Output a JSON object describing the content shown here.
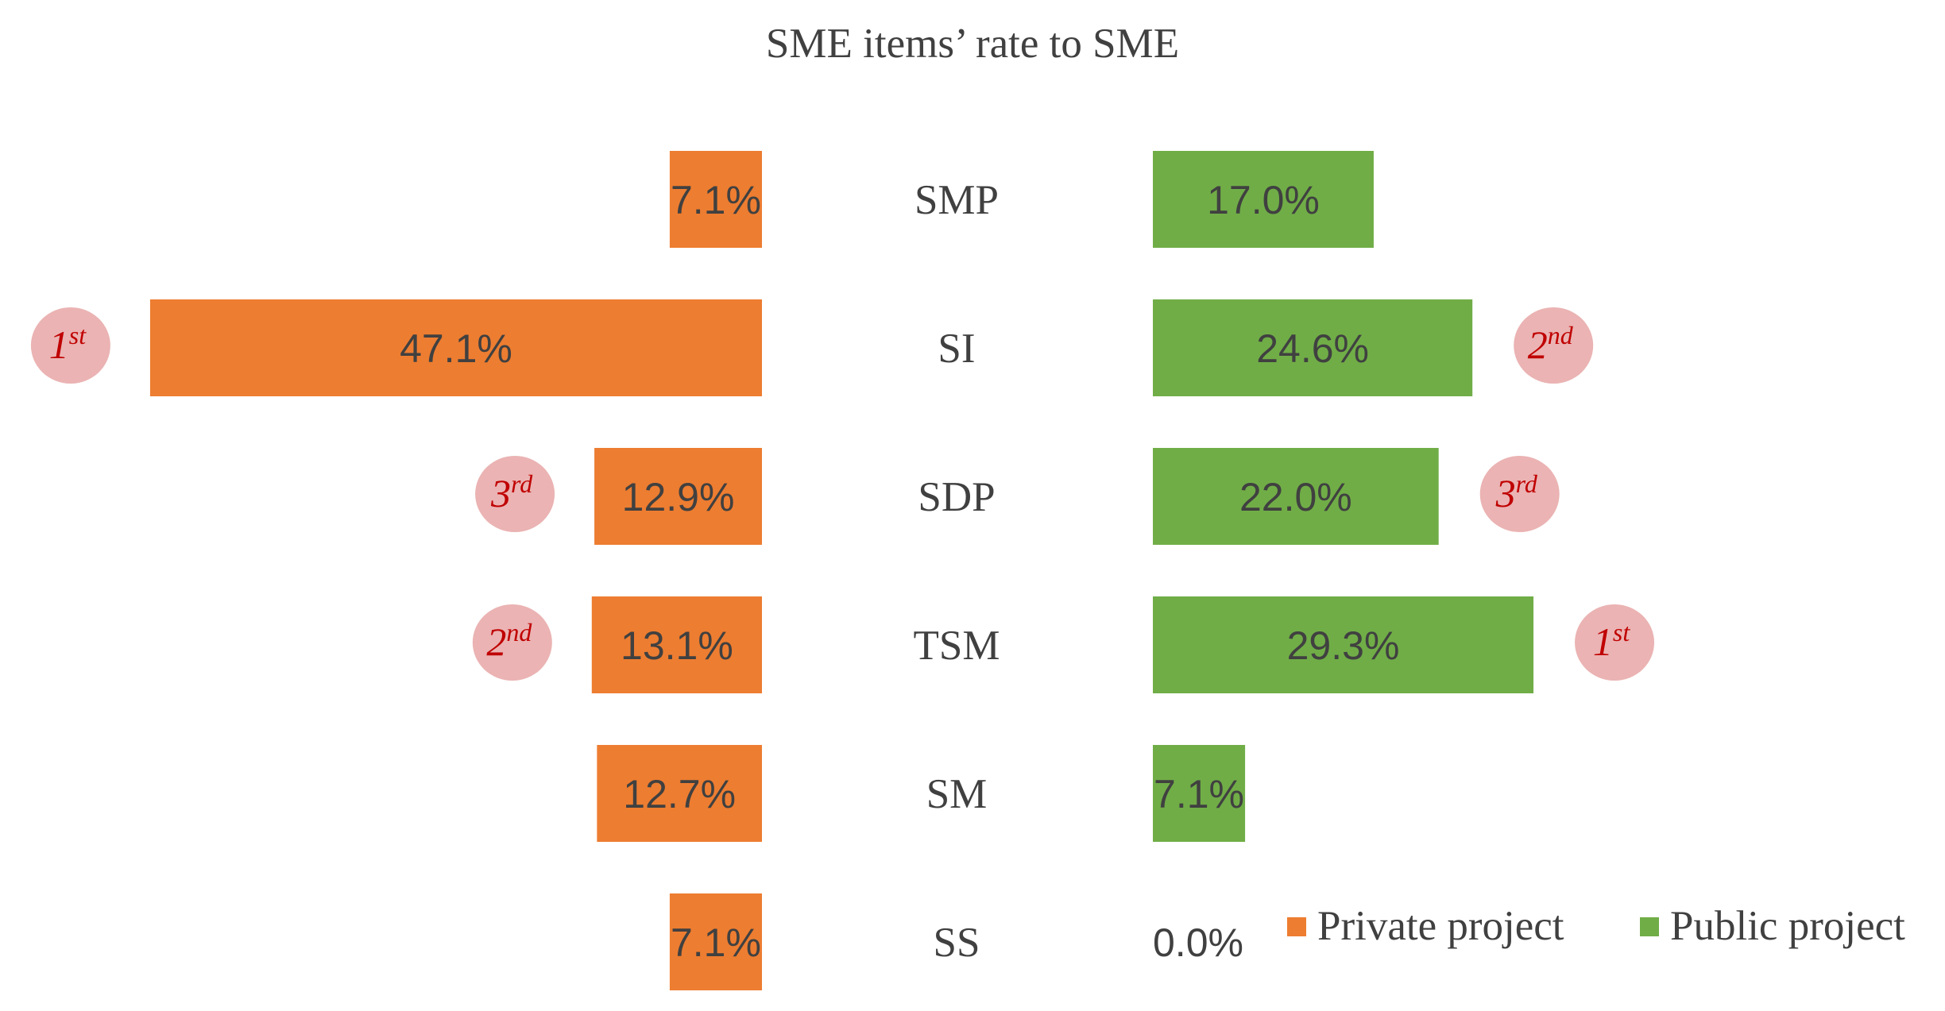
{
  "chart_data": {
    "type": "bar",
    "orientation": "horizontal-butterfly",
    "title": "SME  items’ rate to SME",
    "categories": [
      "SMP",
      "SI",
      "SDP",
      "TSM",
      "SM",
      "SS"
    ],
    "series": [
      {
        "name": "Private project",
        "color": "#ED7D31",
        "side": "left",
        "values": [
          7.1,
          47.1,
          12.9,
          13.1,
          12.7,
          7.1
        ],
        "labels": [
          "7.1%",
          "47.1%",
          "12.9%",
          "13.1%",
          "12.7%",
          "7.1%"
        ],
        "ranks": {
          "SI": "1st",
          "TSM": "2nd",
          "SDP": "3rd"
        }
      },
      {
        "name": "Public project",
        "color": "#70AD47",
        "side": "right",
        "values": [
          17.0,
          24.6,
          22.0,
          29.3,
          7.1,
          0.0
        ],
        "labels": [
          "17.0%",
          "24.6%",
          "22.0%",
          "29.3%",
          "7.1%",
          "0.0%"
        ],
        "ranks": {
          "TSM": "1st",
          "SI": "2nd",
          "SDP": "3rd"
        }
      }
    ],
    "unit": "%",
    "legend_position": "bottom-right",
    "grid": false,
    "rank_badge_color": "#EBB3B3",
    "rank_text_color": "#C00000"
  }
}
